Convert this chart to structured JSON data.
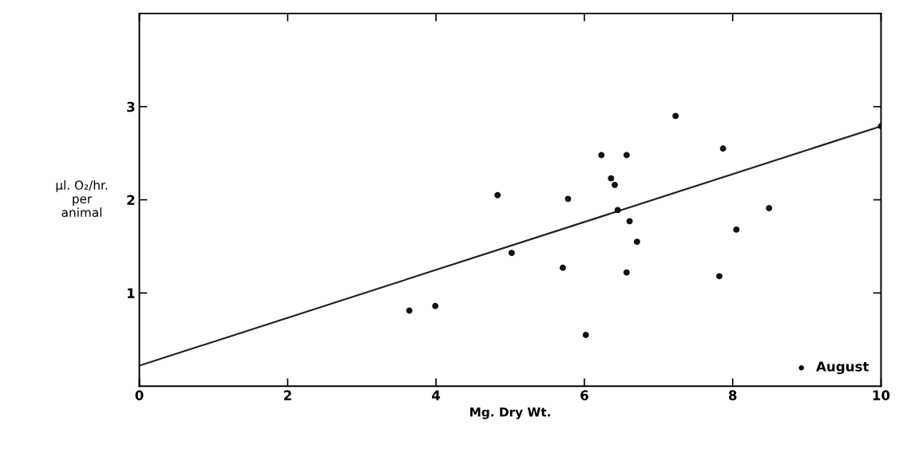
{
  "chart_data": {
    "type": "scatter",
    "xlabel": "Mg. Dry Wt.",
    "ylabel": "µl. O₂/hr.\nper\nanimal",
    "xlim": [
      0,
      10
    ],
    "ylim": [
      0,
      4
    ],
    "xticks": [
      0,
      2,
      4,
      6,
      8,
      10
    ],
    "yticks": [
      1,
      2,
      3
    ],
    "grid": false,
    "legend": "bottom right",
    "series": [
      {
        "name": "August",
        "marker": "circle",
        "color": "#111111",
        "x": [
          3.64,
          3.99,
          4.83,
          5.02,
          5.71,
          5.78,
          6.02,
          6.23,
          6.36,
          6.41,
          6.45,
          6.57,
          6.61,
          6.71,
          6.57,
          7.23,
          7.87,
          8.49,
          8.05,
          7.82,
          10.0
        ],
        "values": [
          0.81,
          0.86,
          2.05,
          1.43,
          1.27,
          2.01,
          0.55,
          2.48,
          2.23,
          2.16,
          1.89,
          2.48,
          1.77,
          1.55,
          1.22,
          2.9,
          2.55,
          1.91,
          1.68,
          1.18,
          2.79
        ]
      },
      {
        "type": "line",
        "marker": "none",
        "color": "#222222",
        "x": [
          0,
          10
        ],
        "values": [
          0.22,
          2.79
        ]
      }
    ]
  }
}
